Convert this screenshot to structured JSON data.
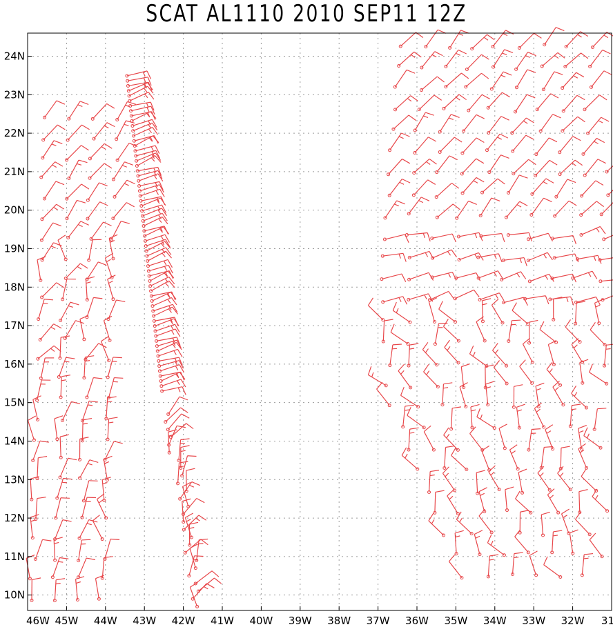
{
  "title": "SCAT AL1110 2010 SEP11 12Z",
  "map": {
    "lon_min": -46,
    "lon_max": -31,
    "lat_min": 9.6,
    "lat_max": 24.6,
    "lon_ticks": [
      "46W",
      "45W",
      "44W",
      "43W",
      "42W",
      "41W",
      "40W",
      "39W",
      "38W",
      "37W",
      "36W",
      "35W",
      "34W",
      "33W",
      "32W",
      "31"
    ],
    "lat_ticks": [
      "10N",
      "11N",
      "12N",
      "13N",
      "14N",
      "15N",
      "16N",
      "17N",
      "18N",
      "19N",
      "20N",
      "21N",
      "22N",
      "23N",
      "24N"
    ],
    "barb_color": "#e8474a",
    "grid": "dotted"
  }
}
